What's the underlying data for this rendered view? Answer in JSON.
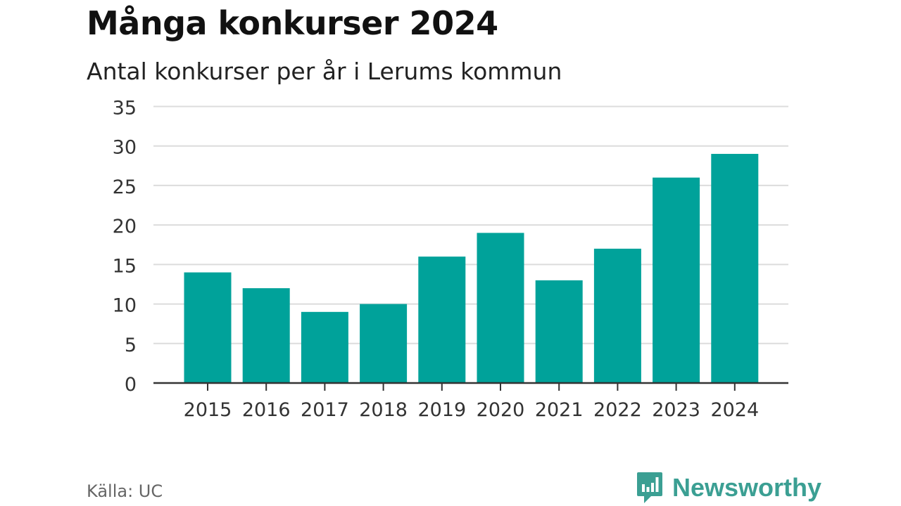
{
  "title": "Många konkurser 2024",
  "subtitle": "Antal konkurser per år i Lerums kommun",
  "source": "Källa: UC",
  "brand": {
    "name": "Newsworthy",
    "icon": "newsworthy-logo-icon",
    "color": "#3b9f93"
  },
  "chart_data": {
    "type": "bar",
    "categories": [
      "2015",
      "2016",
      "2017",
      "2018",
      "2019",
      "2020",
      "2021",
      "2022",
      "2023",
      "2024"
    ],
    "values": [
      14,
      12,
      9,
      10,
      16,
      19,
      13,
      17,
      26,
      29
    ],
    "ylim": [
      0,
      35
    ],
    "yticks": [
      0,
      5,
      10,
      15,
      20,
      25,
      30,
      35
    ],
    "bar_color": "#00a29a",
    "grid": true,
    "xlabel": "",
    "ylabel": ""
  }
}
